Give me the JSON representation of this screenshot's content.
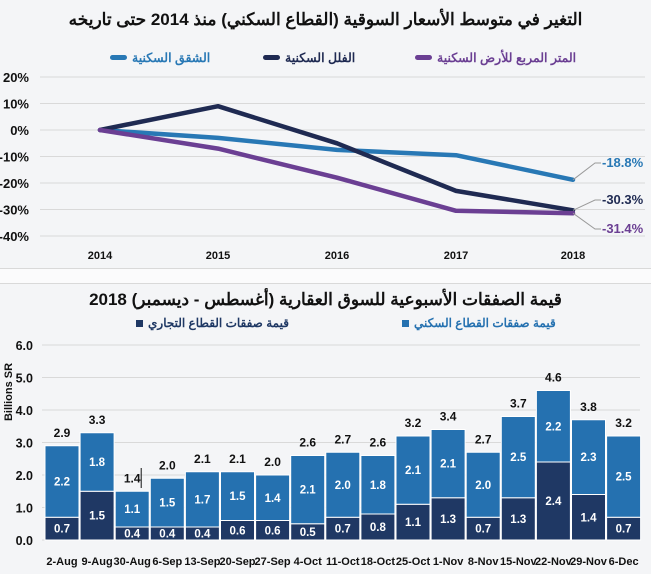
{
  "chart_data": [
    {
      "type": "line",
      "title": "التغير في متوسط الأسعار السوقية (القطاع السكني) منذ 2014 حتى تاريخه",
      "xlabel": "",
      "ylabel": "",
      "x": [
        "2014",
        "2015",
        "2016",
        "2017",
        "2018"
      ],
      "ylim": [
        -40,
        20
      ],
      "yticks": [
        "20%",
        "10%",
        "0%",
        "-10%",
        "-20%",
        "-30%",
        "-40%"
      ],
      "grid": true,
      "legend_position": "top",
      "series": [
        {
          "name": "الشقق السكنية",
          "color": "#2878b5",
          "values": [
            0,
            -3,
            -7.5,
            -9.5,
            -18.8
          ],
          "end_label": "-18.8%"
        },
        {
          "name": "الفلل السكنية",
          "color": "#1f2a52",
          "values": [
            0,
            9,
            -5,
            -23,
            -30.3
          ],
          "end_label": "-30.3%"
        },
        {
          "name": "المتر المربع للأرض السكنية",
          "color": "#6b3f93",
          "values": [
            0,
            -7,
            -18,
            -30.5,
            -31.4
          ],
          "end_label": "-31.4%"
        }
      ]
    },
    {
      "type": "bar",
      "stacked": true,
      "title": "قيمة الصفقات الأسبوعية للسوق العقارية (أغسطس - ديسمبر) 2018",
      "xlabel": "",
      "ylabel": "Billions SR",
      "ylim": [
        0,
        6
      ],
      "yticks": [
        "0.0",
        "1.0",
        "2.0",
        "3.0",
        "4.0",
        "5.0",
        "6.0"
      ],
      "grid": true,
      "legend_position": "top",
      "categories": [
        "2-Aug",
        "9-Aug",
        "30-Aug",
        "6-Sep",
        "13-Sep",
        "20-Sep",
        "27-Sep",
        "4-Oct",
        "11-Oct",
        "18-Oct",
        "25-Oct",
        "1-Nov",
        "8-Nov",
        "15-Nov",
        "22-Nov",
        "29-Nov",
        "6-Dec"
      ],
      "series": [
        {
          "name": "قيمة صفقات القطاع التجاري",
          "color": "#1f3864",
          "values": [
            0.7,
            1.5,
            0.4,
            0.4,
            0.4,
            0.6,
            0.6,
            0.5,
            0.7,
            0.8,
            1.1,
            1.3,
            0.7,
            1.3,
            2.4,
            1.4,
            0.7
          ]
        },
        {
          "name": "قيمة صفقات القطاع السكني",
          "color": "#2571b0",
          "values": [
            2.2,
            1.8,
            1.1,
            1.5,
            1.7,
            1.5,
            1.4,
            2.1,
            2.0,
            1.8,
            2.1,
            2.1,
            2.0,
            2.5,
            2.2,
            2.3,
            2.5
          ]
        }
      ],
      "totals": [
        "2.9",
        "3.3",
        "1.4",
        "2.0",
        "2.1",
        "2.1",
        "2.0",
        "2.6",
        "2.7",
        "2.6",
        "3.2",
        "3.4",
        "2.7",
        "3.7",
        "4.6",
        "3.8",
        "3.2"
      ]
    }
  ],
  "line_chart": {
    "title": "التغير في متوسط الأسعار السوقية (القطاع السكني) منذ 2014 حتى تاريخه",
    "legend": [
      {
        "label": "الشقق السكنية",
        "color": "#2878b5"
      },
      {
        "label": "الفلل السكنية",
        "color": "#1f2a52"
      },
      {
        "label": "المتر المربع للأرض السكنية",
        "color": "#6b3f93"
      }
    ]
  },
  "bar_chart": {
    "title": "قيمة الصفقات الأسبوعية للسوق العقارية (أغسطس - ديسمبر) 2018",
    "ylabel": "Billions SR",
    "legend": [
      {
        "label": "قيمة صفقات القطاع التجاري",
        "color": "#1f3864"
      },
      {
        "label": "قيمة صفقات القطاع السكني",
        "color": "#2571b0"
      }
    ]
  }
}
